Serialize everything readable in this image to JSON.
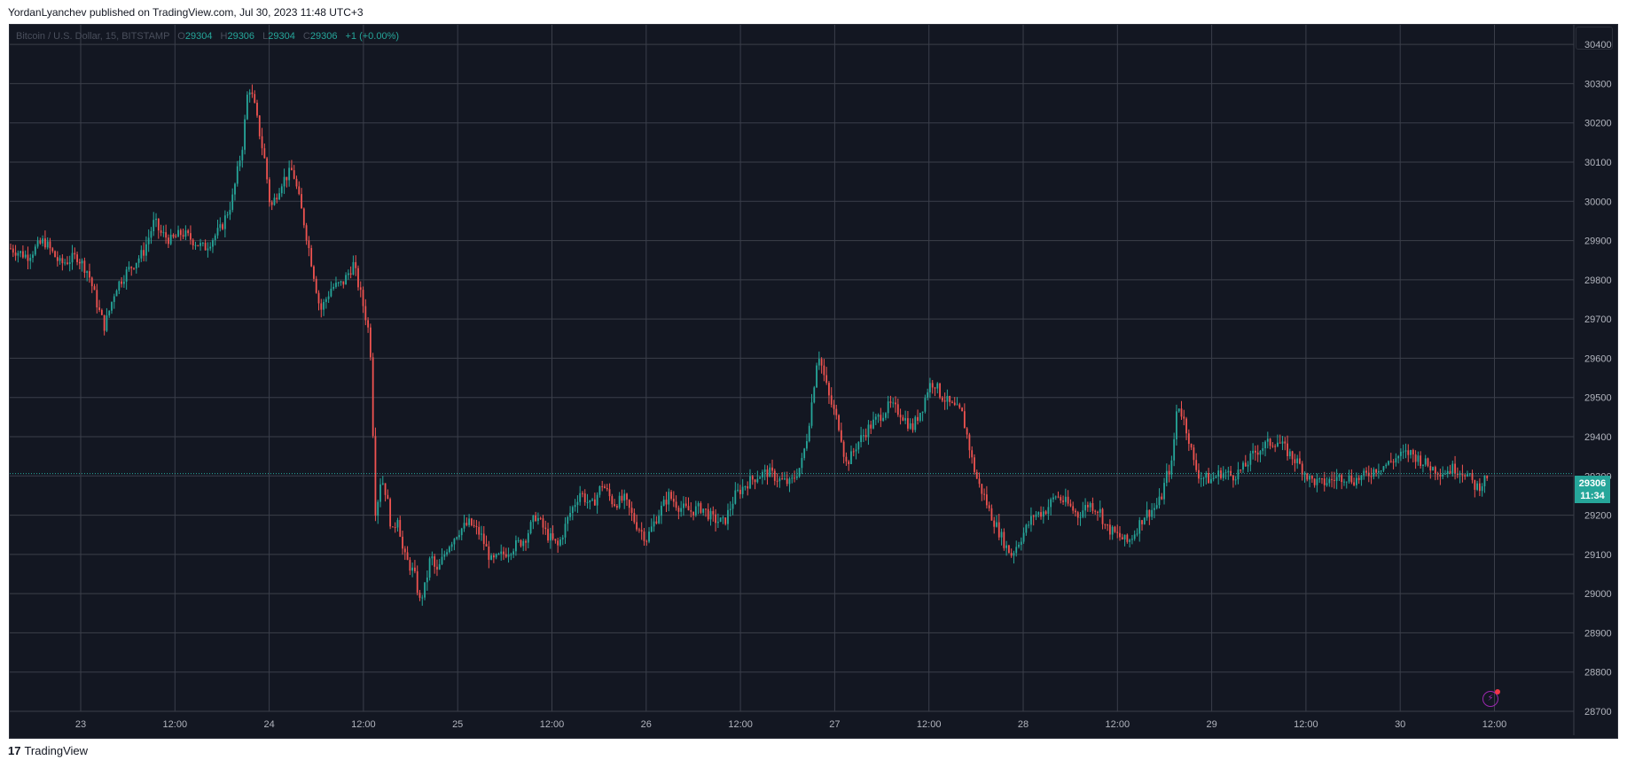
{
  "header": {
    "published_text": "YordanLyanchev published on TradingView.com, Jul 30, 2023 11:48 UTC+3"
  },
  "symbol": {
    "title": "Bitcoin / U.S. Dollar, 15, BITSTAMP",
    "open_key": "O",
    "open": "29304",
    "high_key": "H",
    "high": "29306",
    "low_key": "L",
    "low": "29304",
    "close_key": "C",
    "close": "29306",
    "change": "+1 (+0.00%)"
  },
  "price_tag": {
    "price": "29306",
    "countdown": "11:34"
  },
  "footer": {
    "logo": "17",
    "brand": "TradingView"
  },
  "colors": {
    "background": "#131722",
    "grid": "#3b3f4a",
    "up": "#26a69a",
    "down": "#ef5350",
    "axis_text": "#b2b5be"
  },
  "chart_data": {
    "type": "candlestick",
    "title": "Bitcoin / U.S. Dollar, 15, BITSTAMP",
    "ylim": [
      28700,
      30450
    ],
    "y_ticks": [
      28700,
      28800,
      28900,
      29000,
      29100,
      29200,
      29300,
      29400,
      29500,
      29600,
      29700,
      29800,
      29900,
      30000,
      30100,
      30200,
      30300,
      30400
    ],
    "x_tick_labels": [
      "23",
      "12:00",
      "24",
      "12:00",
      "25",
      "12:00",
      "26",
      "12:00",
      "27",
      "12:00",
      "28",
      "12:00",
      "29",
      "12:00",
      "30",
      "12:00"
    ],
    "last_price": 29306,
    "grid": true,
    "price_path": [
      [
        0,
        29880
      ],
      [
        3,
        29860
      ],
      [
        6,
        29900
      ],
      [
        9,
        29840
      ],
      [
        12,
        29860
      ],
      [
        14,
        29820
      ],
      [
        16,
        29720
      ],
      [
        17,
        29680
      ],
      [
        19,
        29780
      ],
      [
        21,
        29820
      ],
      [
        24,
        29870
      ],
      [
        26,
        29950
      ],
      [
        27,
        29920
      ],
      [
        29,
        29900
      ],
      [
        31,
        29920
      ],
      [
        33,
        29900
      ],
      [
        35,
        29880
      ],
      [
        38,
        29930
      ],
      [
        40,
        30000
      ],
      [
        42,
        30150
      ],
      [
        43,
        30300
      ],
      [
        44,
        30250
      ],
      [
        46,
        30100
      ],
      [
        47,
        29980
      ],
      [
        49,
        30050
      ],
      [
        51,
        30080
      ],
      [
        53,
        29950
      ],
      [
        55,
        29800
      ],
      [
        56,
        29720
      ],
      [
        58,
        29780
      ],
      [
        60,
        29790
      ],
      [
        62,
        29840
      ],
      [
        63,
        29780
      ],
      [
        64,
        29720
      ],
      [
        65,
        29650
      ],
      [
        66,
        29200
      ],
      [
        67,
        29300
      ],
      [
        68,
        29250
      ],
      [
        69,
        29150
      ],
      [
        70,
        29200
      ],
      [
        71,
        29100
      ],
      [
        73,
        29050
      ],
      [
        74,
        28980
      ],
      [
        75,
        29020
      ],
      [
        76,
        29100
      ],
      [
        77,
        29050
      ],
      [
        79,
        29120
      ],
      [
        81,
        29160
      ],
      [
        83,
        29180
      ],
      [
        85,
        29150
      ],
      [
        87,
        29080
      ],
      [
        89,
        29100
      ],
      [
        91,
        29120
      ],
      [
        93,
        29140
      ],
      [
        95,
        29200
      ],
      [
        97,
        29150
      ],
      [
        99,
        29120
      ],
      [
        101,
        29200
      ],
      [
        103,
        29260
      ],
      [
        105,
        29220
      ],
      [
        107,
        29280
      ],
      [
        109,
        29230
      ],
      [
        111,
        29240
      ],
      [
        113,
        29180
      ],
      [
        115,
        29140
      ],
      [
        117,
        29200
      ],
      [
        119,
        29250
      ],
      [
        121,
        29220
      ],
      [
        123,
        29210
      ],
      [
        125,
        29220
      ],
      [
        127,
        29190
      ],
      [
        129,
        29180
      ],
      [
        131,
        29250
      ],
      [
        133,
        29280
      ],
      [
        135,
        29300
      ],
      [
        137,
        29310
      ],
      [
        139,
        29290
      ],
      [
        141,
        29280
      ],
      [
        143,
        29330
      ],
      [
        144,
        29400
      ],
      [
        145,
        29500
      ],
      [
        146,
        29620
      ],
      [
        147,
        29560
      ],
      [
        148,
        29500
      ],
      [
        149,
        29460
      ],
      [
        150,
        29420
      ],
      [
        151,
        29330
      ],
      [
        152,
        29350
      ],
      [
        153,
        29380
      ],
      [
        155,
        29420
      ],
      [
        157,
        29450
      ],
      [
        159,
        29480
      ],
      [
        161,
        29460
      ],
      [
        163,
        29420
      ],
      [
        165,
        29480
      ],
      [
        166,
        29530
      ],
      [
        167,
        29540
      ],
      [
        168,
        29510
      ],
      [
        170,
        29480
      ],
      [
        172,
        29460
      ],
      [
        173,
        29400
      ],
      [
        174,
        29330
      ],
      [
        175,
        29280
      ],
      [
        176,
        29250
      ],
      [
        177,
        29210
      ],
      [
        178,
        29180
      ],
      [
        179,
        29150
      ],
      [
        180,
        29120
      ],
      [
        181,
        29100
      ],
      [
        183,
        29150
      ],
      [
        185,
        29200
      ],
      [
        187,
        29210
      ],
      [
        189,
        29250
      ],
      [
        191,
        29230
      ],
      [
        193,
        29200
      ],
      [
        195,
        29230
      ],
      [
        197,
        29210
      ],
      [
        198,
        29170
      ],
      [
        200,
        29150
      ],
      [
        202,
        29130
      ],
      [
        203,
        29150
      ],
      [
        205,
        29200
      ],
      [
        207,
        29220
      ],
      [
        208,
        29240
      ],
      [
        209,
        29300
      ],
      [
        210,
        29330
      ],
      [
        211,
        29490
      ],
      [
        212,
        29450
      ],
      [
        213,
        29400
      ],
      [
        214,
        29330
      ],
      [
        215,
        29300
      ],
      [
        217,
        29290
      ],
      [
        219,
        29310
      ],
      [
        221,
        29300
      ],
      [
        223,
        29320
      ],
      [
        225,
        29360
      ],
      [
        227,
        29380
      ],
      [
        229,
        29390
      ],
      [
        231,
        29360
      ],
      [
        233,
        29330
      ],
      [
        235,
        29290
      ],
      [
        237,
        29280
      ],
      [
        239,
        29290
      ],
      [
        241,
        29300
      ],
      [
        243,
        29290
      ],
      [
        245,
        29300
      ],
      [
        247,
        29320
      ],
      [
        249,
        29330
      ],
      [
        251,
        29350
      ],
      [
        253,
        29360
      ],
      [
        255,
        29340
      ],
      [
        257,
        29320
      ],
      [
        259,
        29310
      ],
      [
        261,
        29320
      ],
      [
        263,
        29310
      ],
      [
        264,
        29290
      ],
      [
        265,
        29270
      ],
      [
        266,
        29280
      ],
      [
        267,
        29300
      ]
    ]
  }
}
